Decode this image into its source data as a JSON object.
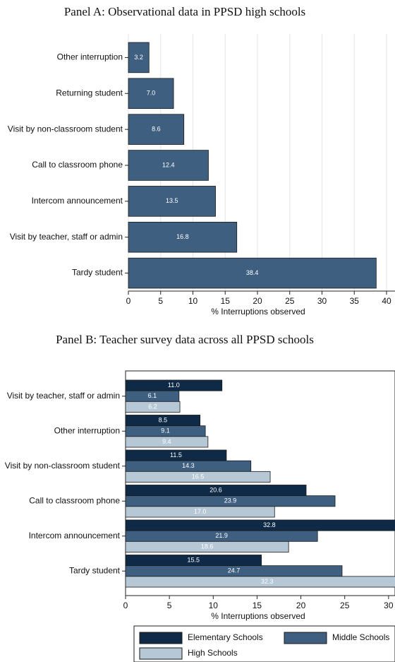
{
  "chart_data": [
    {
      "type": "barh",
      "title": "Panel A: Observational data in PPSD high schools",
      "x_label": "% Interruptions observed",
      "categories": [
        "Other interruption",
        "Returning student",
        "Visit by non-classroom student",
        "Call to classroom phone",
        "Intercom announcement",
        "Visit by teacher, staff or admin",
        "Tardy student"
      ],
      "series": [
        {
          "name": null,
          "color": "#3e5f80",
          "values": [
            3.2,
            7.0,
            8.6,
            12.4,
            13.5,
            16.8,
            38.4
          ],
          "value_labels": [
            "3.2",
            "7.0",
            "8.6",
            "12.4",
            "13.5",
            "16.8",
            "38.4"
          ]
        }
      ],
      "xlim": [
        0,
        40
      ],
      "xticks": [
        0,
        5,
        10,
        15,
        20,
        25,
        30,
        35,
        40
      ],
      "grid": true
    },
    {
      "type": "barh",
      "title": "Panel B: Teacher survey data across all PPSD schools",
      "x_label": "% Interruptions observed",
      "categories": [
        "Visit by teacher, staff or admin",
        "Other interruption",
        "Visit by non-classroom student",
        "Call to classroom phone",
        "Intercom announcement",
        "Tardy student"
      ],
      "series": [
        {
          "name": "Elementary Schools",
          "color": "#0e2a47",
          "values": [
            11.0,
            8.5,
            11.5,
            20.6,
            32.8,
            15.5
          ],
          "value_labels": [
            "11.0",
            "8.5",
            "11.5",
            "20.6",
            "32.8",
            "15.5"
          ]
        },
        {
          "name": "Middle Schools",
          "color": "#3e5f80",
          "values": [
            6.1,
            9.1,
            14.3,
            23.9,
            21.9,
            24.7
          ],
          "value_labels": [
            "6.1",
            "9.1",
            "14.3",
            "23.9",
            "21.9",
            "24.7"
          ]
        },
        {
          "name": "High Schools",
          "color": "#b6c7d6",
          "values": [
            6.2,
            9.4,
            16.5,
            17.0,
            18.6,
            32.3
          ],
          "value_labels": [
            "6.2",
            "9.4",
            "16.5",
            "17.0",
            "18.6",
            "32.3"
          ]
        }
      ],
      "xlim": [
        0,
        35
      ],
      "xticks": [
        0,
        5,
        10,
        15,
        20,
        25,
        30,
        35
      ],
      "grid": false,
      "legend": "bottom"
    }
  ]
}
